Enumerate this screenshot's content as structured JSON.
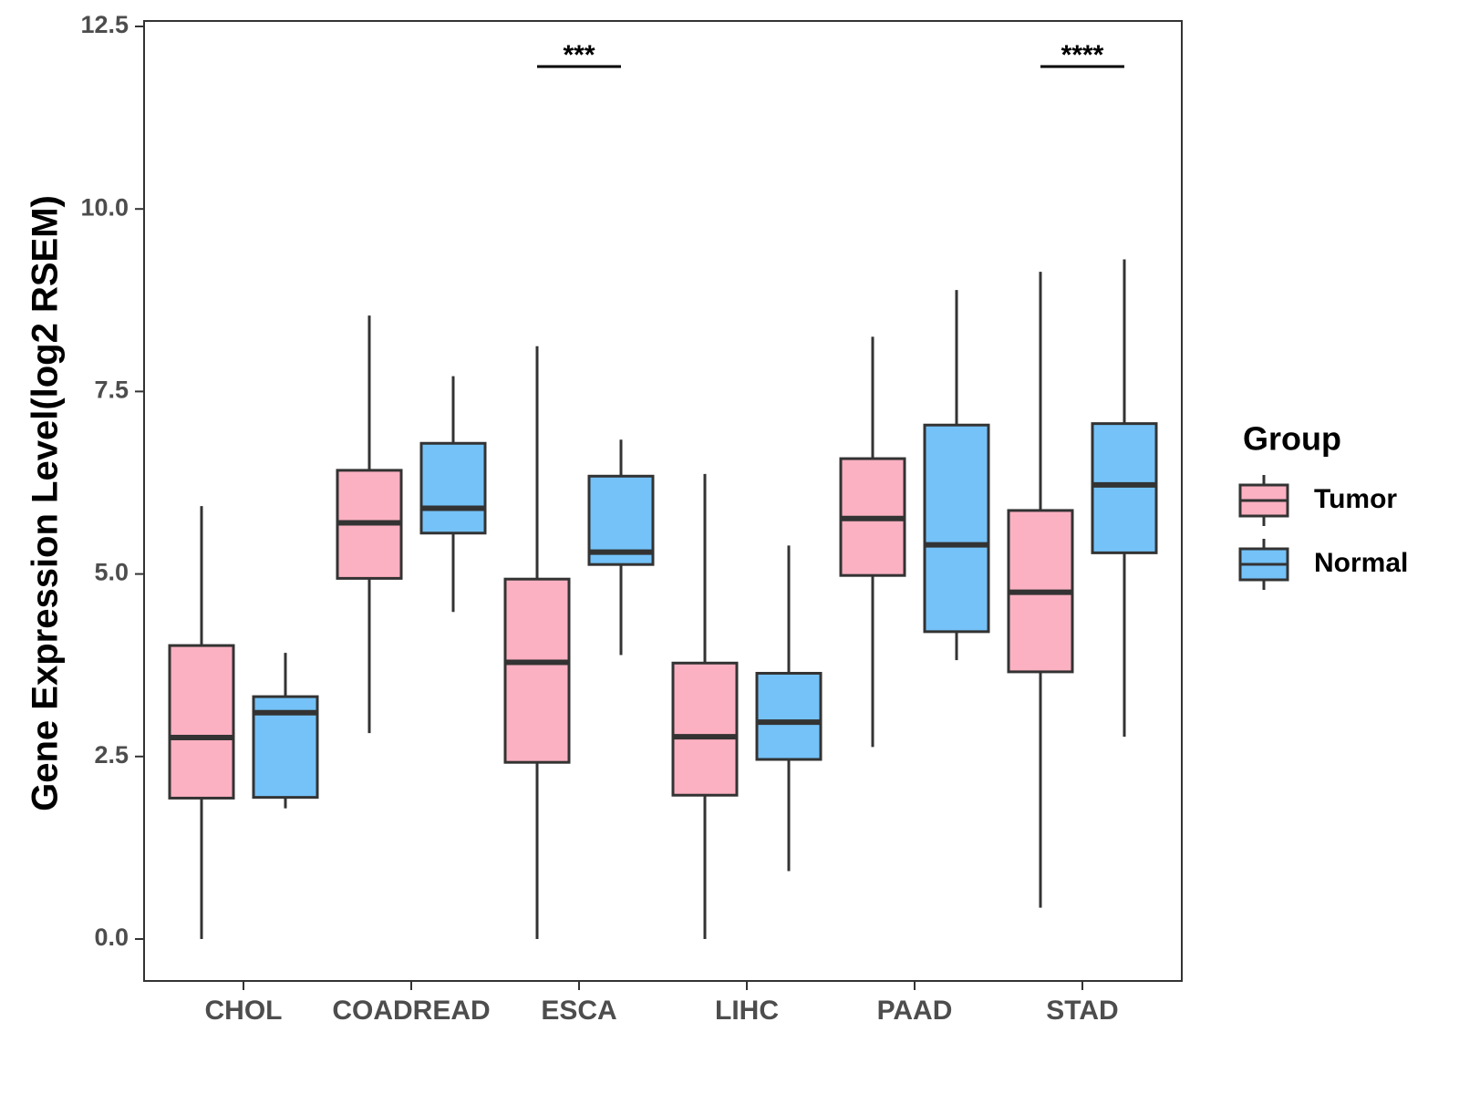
{
  "chart_data": {
    "type": "box",
    "title": "",
    "xlabel": "",
    "ylabel": "Gene Expression Level(log2 RSEM)",
    "ylim": [
      -0.6,
      12.5
    ],
    "yticks": [
      0.0,
      2.5,
      5.0,
      7.5,
      10.0,
      12.5
    ],
    "ytick_labels": [
      "0.0",
      "2.5",
      "5.0",
      "7.5",
      "10.0",
      "12.5"
    ],
    "grid": false,
    "categories": [
      "CHOL",
      "COADREAD",
      "ESCA",
      "LIHC",
      "PAAD",
      "STAD"
    ],
    "legend": {
      "title": "Group",
      "position": "right",
      "entries": [
        {
          "name": "Tumor",
          "color": "#FBB1C2"
        },
        {
          "name": "Normal",
          "color": "#74C2F8"
        }
      ]
    },
    "series": [
      {
        "name": "Tumor",
        "color": "#FBB1C2",
        "boxes": [
          {
            "whisker_low": 0.0,
            "q1": 1.93,
            "median": 2.76,
            "q3": 4.02,
            "whisker_high": 5.93
          },
          {
            "whisker_low": 2.82,
            "q1": 4.94,
            "median": 5.7,
            "q3": 6.42,
            "whisker_high": 8.54
          },
          {
            "whisker_low": 0.0,
            "q1": 2.42,
            "median": 3.79,
            "q3": 4.93,
            "whisker_high": 8.12
          },
          {
            "whisker_low": 0.0,
            "q1": 1.97,
            "median": 2.77,
            "q3": 3.78,
            "whisker_high": 6.37
          },
          {
            "whisker_low": 2.63,
            "q1": 4.98,
            "median": 5.76,
            "q3": 6.58,
            "whisker_high": 8.25
          },
          {
            "whisker_low": 0.43,
            "q1": 3.66,
            "median": 4.75,
            "q3": 5.87,
            "whisker_high": 9.14
          }
        ]
      },
      {
        "name": "Normal",
        "color": "#74C2F8",
        "boxes": [
          {
            "whisker_low": 1.79,
            "q1": 1.94,
            "median": 3.1,
            "q3": 3.32,
            "whisker_high": 3.92
          },
          {
            "whisker_low": 4.48,
            "q1": 5.56,
            "median": 5.9,
            "q3": 6.79,
            "whisker_high": 7.71
          },
          {
            "whisker_low": 3.89,
            "q1": 5.13,
            "median": 5.3,
            "q3": 6.34,
            "whisker_high": 6.84
          },
          {
            "whisker_low": 0.93,
            "q1": 2.46,
            "median": 2.97,
            "q3": 3.64,
            "whisker_high": 5.39
          },
          {
            "whisker_low": 3.82,
            "q1": 4.21,
            "median": 5.4,
            "q3": 7.04,
            "whisker_high": 8.89
          },
          {
            "whisker_low": 2.77,
            "q1": 5.29,
            "median": 6.22,
            "q3": 7.06,
            "whisker_high": 9.31
          }
        ]
      }
    ],
    "significance": [
      {
        "category": "ESCA",
        "label": "***",
        "y": 11.95
      },
      {
        "category": "STAD",
        "label": "****",
        "y": 11.95
      }
    ]
  }
}
